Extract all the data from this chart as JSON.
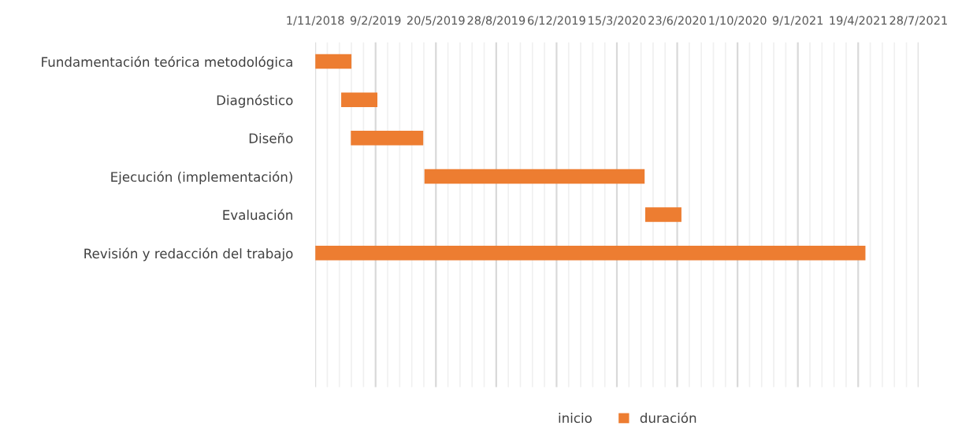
{
  "chart_data": {
    "type": "bar",
    "orientation": "horizontal",
    "categories": [
      "Fundamentación teórica metodológica",
      "Diagnóstico",
      "Diseño",
      "Ejecución (implementación)",
      "Evaluación",
      "Revisión y redacción del trabajo",
      null,
      null,
      null
    ],
    "series": [
      {
        "name": "inicio",
        "values": [
          null,
          null,
          null,
          null,
          null,
          null,
          null,
          null,
          null
        ]
      },
      {
        "name": "duración",
        "color": "#ed7d31",
        "base": [
          17836,
          17879,
          17895,
          18017,
          18383,
          17836,
          null,
          null,
          null
        ],
        "values": [
          60,
          60,
          120,
          365,
          60,
          912,
          null,
          null,
          null
        ]
      }
    ],
    "xlim": [
      "2018-11-01",
      "2021-07-28"
    ],
    "xticks": [
      {
        "value": "2018-11-01",
        "label": "1/11/2018"
      },
      {
        "value": "2018-11-21",
        "label": null
      },
      {
        "value": "2018-12-11",
        "label": null
      },
      {
        "value": "2018-12-31",
        "label": null
      },
      {
        "value": "2019-01-20",
        "label": null
      },
      {
        "value": "2019-02-09",
        "label": "9/2/2019"
      },
      {
        "value": "2019-03-01",
        "label": null
      },
      {
        "value": "2019-03-21",
        "label": null
      },
      {
        "value": "2019-04-10",
        "label": null
      },
      {
        "value": "2019-04-30",
        "label": null
      },
      {
        "value": "2019-05-20",
        "label": "20/5/2019"
      },
      {
        "value": "2019-06-09",
        "label": null
      },
      {
        "value": "2019-06-29",
        "label": null
      },
      {
        "value": "2019-07-19",
        "label": null
      },
      {
        "value": "2019-08-08",
        "label": null
      },
      {
        "value": "2019-08-28",
        "label": "28/8/2019"
      },
      {
        "value": "2019-09-17",
        "label": null
      },
      {
        "value": "2019-10-07",
        "label": null
      },
      {
        "value": "2019-10-27",
        "label": null
      },
      {
        "value": "2019-11-16",
        "label": null
      },
      {
        "value": "2019-12-06",
        "label": "6/12/2019"
      },
      {
        "value": "2019-12-26",
        "label": null
      },
      {
        "value": "2020-01-15",
        "label": null
      },
      {
        "value": "2020-02-04",
        "label": null
      },
      {
        "value": "2020-02-24",
        "label": null
      },
      {
        "value": "2020-03-15",
        "label": "15/3/2020"
      },
      {
        "value": "2020-04-04",
        "label": null
      },
      {
        "value": "2020-04-24",
        "label": null
      },
      {
        "value": "2020-05-14",
        "label": null
      },
      {
        "value": "2020-06-03",
        "label": null
      },
      {
        "value": "2020-06-23",
        "label": "23/6/2020"
      },
      {
        "value": "2020-07-13",
        "label": null
      },
      {
        "value": "2020-08-02",
        "label": null
      },
      {
        "value": "2020-08-22",
        "label": null
      },
      {
        "value": "2020-09-11",
        "label": null
      },
      {
        "value": "2020-10-01",
        "label": "1/10/2020"
      },
      {
        "value": "2020-10-21",
        "label": null
      },
      {
        "value": "2020-11-10",
        "label": null
      },
      {
        "value": "2020-11-30",
        "label": null
      },
      {
        "value": "2020-12-20",
        "label": null
      },
      {
        "value": "2021-01-09",
        "label": "9/1/2021"
      },
      {
        "value": "2021-01-29",
        "label": null
      },
      {
        "value": "2021-02-18",
        "label": null
      },
      {
        "value": "2021-03-10",
        "label": null
      },
      {
        "value": "2021-03-30",
        "label": null
      },
      {
        "value": "2021-04-19",
        "label": "19/4/2021"
      },
      {
        "value": "2021-05-09",
        "label": null
      },
      {
        "value": "2021-05-29",
        "label": null
      },
      {
        "value": "2021-06-18",
        "label": null
      },
      {
        "value": "2021-07-08",
        "label": null
      },
      {
        "value": "2021-07-28",
        "label": "28/7/2021"
      }
    ],
    "grid": "x",
    "legend": "bottom"
  }
}
